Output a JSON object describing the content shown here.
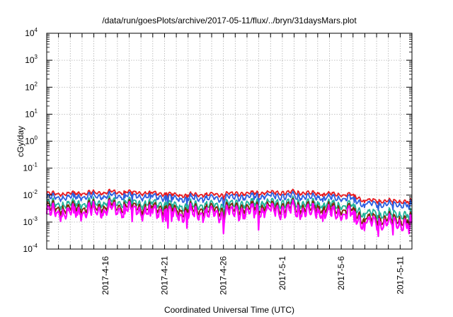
{
  "chart_data": {
    "type": "line",
    "title": "/data/run/goesPlots/archive/2017-05-11/flux/../bryn/31daysMars.plot",
    "xlabel": "Coordinated Universal Time (UTC)",
    "ylabel": "cGy/day",
    "yscale": "log",
    "ylim": [
      0.0001,
      10000
    ],
    "y_ticks": [
      {
        "base": "10",
        "exp": "-4",
        "value": 0.0001
      },
      {
        "base": "10",
        "exp": "-3",
        "value": 0.001
      },
      {
        "base": "10",
        "exp": "-2",
        "value": 0.01
      },
      {
        "base": "10",
        "exp": "-1",
        "value": 0.1
      },
      {
        "base": "10",
        "exp": "0",
        "value": 1
      },
      {
        "base": "10",
        "exp": "1",
        "value": 10
      },
      {
        "base": "10",
        "exp": "2",
        "value": 100
      },
      {
        "base": "10",
        "exp": "3",
        "value": 1000
      },
      {
        "base": "10",
        "exp": "4",
        "value": 10000
      }
    ],
    "xlim": [
      "2017-04-11",
      "2017-05-12"
    ],
    "x_ticks": [
      "2017-4-16",
      "2017-4-21",
      "2017-4-26",
      "2017-5-1",
      "2017-5-6",
      "2017-5-11"
    ],
    "grid": true,
    "legend": "none",
    "series": [
      {
        "color": "#e8191e",
        "x": [
          "2017-04-11",
          "2017-04-14",
          "2017-04-17",
          "2017-04-20",
          "2017-04-23",
          "2017-04-26",
          "2017-04-29",
          "2017-05-02",
          "2017-05-05",
          "2017-05-07",
          "2017-05-08",
          "2017-05-10",
          "2017-05-12"
        ],
        "values": [
          0.011,
          0.012,
          0.013,
          0.012,
          0.01,
          0.011,
          0.012,
          0.013,
          0.011,
          0.01,
          0.0065,
          0.006,
          0.0058
        ]
      },
      {
        "color": "#2b5fe0",
        "x": [
          "2017-04-11",
          "2017-04-14",
          "2017-04-17",
          "2017-04-20",
          "2017-04-23",
          "2017-04-26",
          "2017-04-29",
          "2017-05-02",
          "2017-05-05",
          "2017-05-07",
          "2017-05-08",
          "2017-05-10",
          "2017-05-12"
        ],
        "values": [
          0.008,
          0.009,
          0.0095,
          0.009,
          0.0075,
          0.008,
          0.009,
          0.0095,
          0.008,
          0.0075,
          0.0048,
          0.0045,
          0.0044
        ]
      },
      {
        "color": "#20b39a",
        "x": [
          "2017-04-11",
          "2017-04-14",
          "2017-04-17",
          "2017-04-20",
          "2017-04-23",
          "2017-04-26",
          "2017-04-29",
          "2017-05-02",
          "2017-05-05",
          "2017-05-07",
          "2017-05-08",
          "2017-05-10",
          "2017-05-12"
        ],
        "values": [
          0.0045,
          0.005,
          0.0055,
          0.005,
          0.004,
          0.0045,
          0.005,
          0.0055,
          0.0045,
          0.004,
          0.0022,
          0.002,
          0.0019
        ]
      },
      {
        "color": "#7a2a0a",
        "x": [
          "2017-04-11",
          "2017-04-14",
          "2017-04-17",
          "2017-04-20",
          "2017-04-23",
          "2017-04-26",
          "2017-04-29",
          "2017-05-02",
          "2017-05-05",
          "2017-05-07",
          "2017-05-08",
          "2017-05-10",
          "2017-05-12"
        ],
        "values": [
          0.0032,
          0.0035,
          0.004,
          0.0035,
          0.0028,
          0.0032,
          0.0035,
          0.004,
          0.0032,
          0.0028,
          0.0014,
          0.0013,
          0.0012
        ]
      },
      {
        "color": "#ff00ff",
        "x": [
          "2017-04-11",
          "2017-04-14",
          "2017-04-17",
          "2017-04-20",
          "2017-04-23",
          "2017-04-26",
          "2017-04-29",
          "2017-05-02",
          "2017-05-05",
          "2017-05-07",
          "2017-05-08",
          "2017-05-10",
          "2017-05-12"
        ],
        "values": [
          0.0022,
          0.0025,
          0.003,
          0.0025,
          0.002,
          0.0022,
          0.0025,
          0.003,
          0.0022,
          0.002,
          0.001,
          0.0009,
          0.00085
        ]
      }
    ]
  }
}
